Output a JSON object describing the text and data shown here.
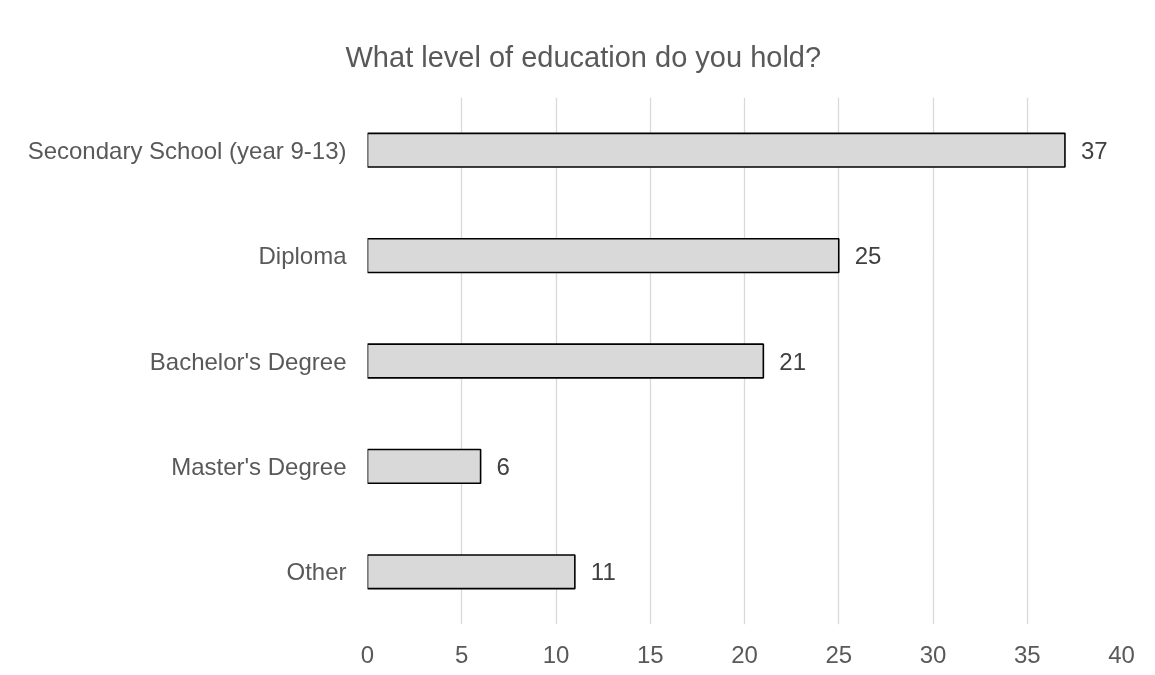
{
  "chart_data": {
    "type": "bar",
    "orientation": "horizontal",
    "title": "What level of education do you hold?",
    "categories": [
      "Secondary School (year 9-13)",
      "Diploma",
      "Bachelor's Degree",
      "Master's Degree",
      "Other"
    ],
    "values": [
      37,
      25,
      21,
      6,
      11
    ],
    "color": "#d9d9d9",
    "xlim": [
      0,
      40
    ],
    "xticks": [
      0,
      5,
      10,
      15,
      20,
      25,
      30,
      35,
      40
    ],
    "grid": "x",
    "data_labels": true
  }
}
